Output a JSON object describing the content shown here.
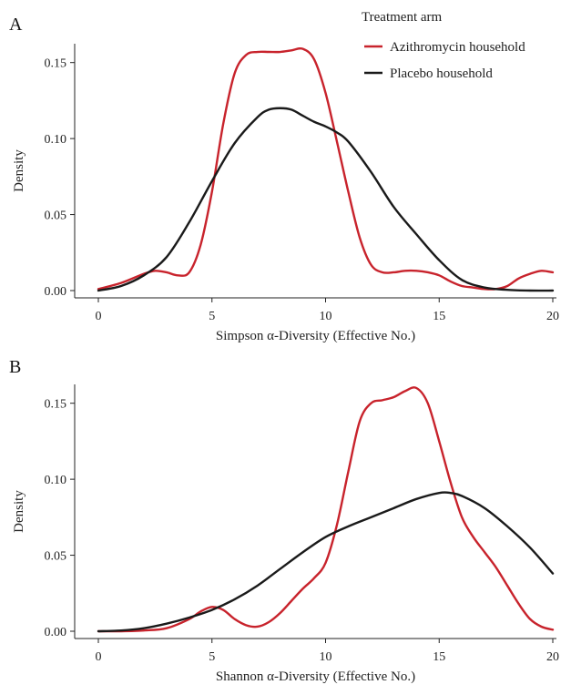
{
  "colors": {
    "azithromycin": "#c8232c",
    "placebo": "#1a1a1a"
  },
  "legend": {
    "title": "Treatment arm",
    "items": [
      "Azithromycin household",
      "Placebo household"
    ]
  },
  "chart_data": [
    {
      "type": "line",
      "panel_label": "A",
      "xlabel": "Simpson α-Diversity (Effective No.)",
      "ylabel": "Density",
      "xlim": [
        0,
        20
      ],
      "ylim": [
        0,
        0.16
      ],
      "xticks": [
        0,
        5,
        10,
        15,
        20
      ],
      "yticks": [
        0.0,
        0.05,
        0.1,
        0.15
      ],
      "ytick_labels": [
        "0.00",
        "0.05",
        "0.10",
        "0.15"
      ],
      "grid": false,
      "series": [
        {
          "name": "Azithromycin household",
          "color_key": "azithromycin",
          "x": [
            0,
            1,
            2,
            2.5,
            3,
            3.5,
            4,
            4.5,
            5,
            5.5,
            6,
            6.5,
            7,
            7.5,
            8,
            8.5,
            9,
            9.5,
            10,
            10.5,
            11,
            11.5,
            12,
            12.5,
            13,
            13.5,
            14,
            14.5,
            15,
            15.5,
            16,
            16.5,
            17,
            17.5,
            18,
            18.5,
            19,
            19.5,
            20
          ],
          "y": [
            0.001,
            0.005,
            0.011,
            0.013,
            0.012,
            0.01,
            0.012,
            0.03,
            0.065,
            0.11,
            0.143,
            0.155,
            0.157,
            0.157,
            0.157,
            0.158,
            0.159,
            0.152,
            0.13,
            0.098,
            0.065,
            0.035,
            0.017,
            0.012,
            0.012,
            0.013,
            0.013,
            0.012,
            0.01,
            0.006,
            0.003,
            0.002,
            0.001,
            0.001,
            0.003,
            0.008,
            0.011,
            0.013,
            0.012
          ]
        },
        {
          "name": "Placebo household",
          "color_key": "placebo",
          "x": [
            0,
            1,
            2,
            3,
            4,
            5,
            6,
            7,
            7.5,
            8,
            8.5,
            9,
            9.5,
            10,
            10.5,
            11,
            12,
            13,
            14,
            15,
            16,
            17,
            18,
            19,
            20
          ],
          "y": [
            0.0,
            0.003,
            0.01,
            0.022,
            0.045,
            0.072,
            0.097,
            0.114,
            0.119,
            0.12,
            0.119,
            0.115,
            0.111,
            0.108,
            0.104,
            0.098,
            0.078,
            0.055,
            0.037,
            0.02,
            0.007,
            0.002,
            0.0005,
            0.0,
            0.0
          ]
        }
      ]
    },
    {
      "type": "line",
      "panel_label": "B",
      "xlabel": "Shannon α-Diversity (Effective No.)",
      "ylabel": "Density",
      "xlim": [
        0,
        20
      ],
      "ylim": [
        0,
        0.16
      ],
      "xticks": [
        0,
        5,
        10,
        15,
        20
      ],
      "yticks": [
        0.0,
        0.05,
        0.1,
        0.15
      ],
      "ytick_labels": [
        "0.00",
        "0.05",
        "0.10",
        "0.15"
      ],
      "grid": false,
      "series": [
        {
          "name": "Azithromycin household",
          "color_key": "azithromycin",
          "x": [
            0,
            1,
            2,
            3,
            4,
            4.5,
            5,
            5.5,
            6,
            6.5,
            7,
            7.5,
            8,
            8.5,
            9,
            9.5,
            10,
            10.5,
            11,
            11.5,
            12,
            12.5,
            13,
            13.5,
            14,
            14.5,
            15,
            15.5,
            16,
            16.5,
            17,
            17.5,
            18,
            18.5,
            19,
            19.5,
            20
          ],
          "y": [
            0.0,
            0.0,
            0.0005,
            0.002,
            0.008,
            0.013,
            0.016,
            0.014,
            0.008,
            0.004,
            0.003,
            0.006,
            0.012,
            0.02,
            0.028,
            0.035,
            0.045,
            0.07,
            0.105,
            0.138,
            0.15,
            0.152,
            0.154,
            0.158,
            0.16,
            0.15,
            0.125,
            0.098,
            0.075,
            0.062,
            0.052,
            0.042,
            0.03,
            0.018,
            0.008,
            0.003,
            0.001
          ]
        },
        {
          "name": "Placebo household",
          "color_key": "placebo",
          "x": [
            0,
            1,
            2,
            3,
            4,
            5,
            6,
            7,
            8,
            9,
            10,
            11,
            12,
            13,
            14,
            15,
            15.5,
            16,
            17,
            18,
            19,
            20
          ],
          "y": [
            0.0,
            0.0005,
            0.002,
            0.005,
            0.009,
            0.014,
            0.021,
            0.03,
            0.041,
            0.052,
            0.062,
            0.069,
            0.075,
            0.081,
            0.087,
            0.091,
            0.091,
            0.089,
            0.081,
            0.069,
            0.055,
            0.038
          ]
        }
      ]
    }
  ]
}
